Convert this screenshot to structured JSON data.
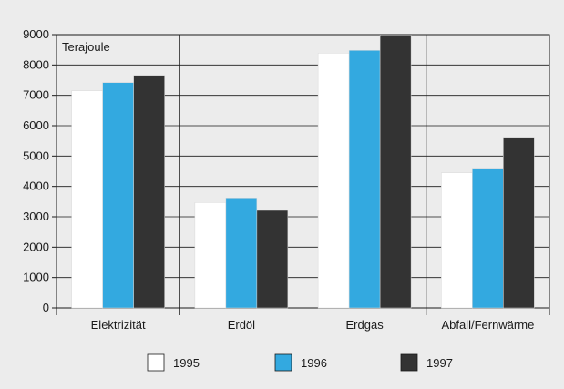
{
  "chart_data": {
    "type": "bar",
    "unit_label": "Terajoule",
    "categories": [
      "Elektrizität",
      "Erdöl",
      "Erdgas",
      "Abfall/Fernwärme"
    ],
    "series": [
      {
        "name": "1995",
        "color": "#ffffff",
        "values": [
          7150,
          3470,
          8390,
          4450
        ]
      },
      {
        "name": "1996",
        "color": "#33a9e0",
        "values": [
          7420,
          3620,
          8480,
          4600
        ]
      },
      {
        "name": "1997",
        "color": "#333333",
        "values": [
          7660,
          3210,
          8990,
          5620
        ]
      }
    ],
    "ylim": [
      0,
      9000
    ],
    "yticks": [
      "0",
      "1000",
      "2000",
      "3000",
      "4000",
      "5000",
      "6000",
      "7000",
      "8000",
      "9000"
    ],
    "grid": true,
    "legend": "bottom",
    "background": "#ececec"
  }
}
